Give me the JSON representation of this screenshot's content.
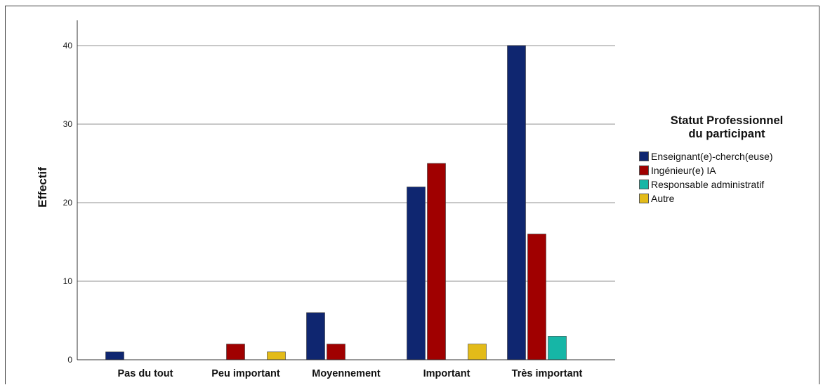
{
  "chart_data": {
    "type": "bar",
    "categories": [
      "Pas du tout",
      "Peu important",
      "Moyennement",
      "Important",
      "Très important"
    ],
    "series": [
      {
        "name": "Enseignant(e)-cherch(euse)",
        "values": [
          1,
          0,
          6,
          22,
          40
        ],
        "color": "#0f2670"
      },
      {
        "name": "Ingénieur(e) IA",
        "values": [
          0,
          2,
          2,
          25,
          16
        ],
        "color": "#a00000"
      },
      {
        "name": "Responsable administratif",
        "values": [
          0,
          0,
          0,
          0,
          3
        ],
        "color": "#16b6a6"
      },
      {
        "name": "Autre",
        "values": [
          0,
          1,
          0,
          2,
          0
        ],
        "color": "#e3bb19"
      }
    ],
    "ylabel": "Effectif",
    "xlabel": "",
    "ylim": [
      0,
      40
    ],
    "yticks": [
      0,
      10,
      20,
      30,
      40
    ],
    "legend_title_line1": "Statut Professionnel",
    "legend_title_line2": "du participant",
    "legend_position": "right",
    "grid": true
  }
}
